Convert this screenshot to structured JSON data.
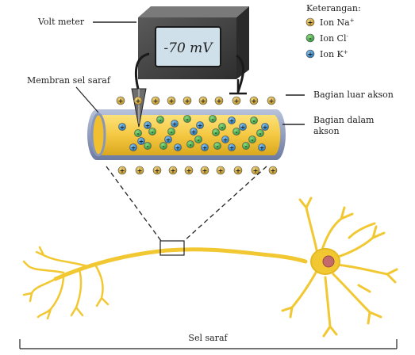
{
  "labels": {
    "voltmeter": "Volt meter",
    "reading": "-70 mV",
    "membrane": "Membran sel saraf",
    "outside": "Bagian luar akson",
    "inside": "Bagian dalam akson",
    "neuron": "Sel saraf"
  },
  "legend": {
    "title": "Keterangan:",
    "items": [
      {
        "label": "Ion Na",
        "superscript": "+",
        "icon": "sodium-ion-icon",
        "color": "#c9a227"
      },
      {
        "label": "Ion Cl",
        "superscript": "-",
        "icon": "chloride-ion-icon",
        "color": "#3fae49"
      },
      {
        "label": "Ion K",
        "superscript": "+",
        "icon": "potassium-ion-icon",
        "color": "#2e86c9"
      }
    ]
  },
  "colors": {
    "axon_fill": "#f5c842",
    "axon_edge": "#8a96b8",
    "neuron": "#f2c832",
    "meter_body": "#3a3a3a",
    "screen": "#cfe0ea"
  }
}
